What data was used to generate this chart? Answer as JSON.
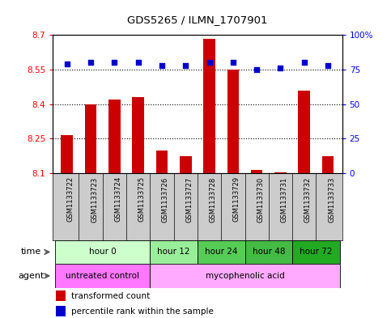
{
  "title": "GDS5265 / ILMN_1707901",
  "samples": [
    "GSM1133722",
    "GSM1133723",
    "GSM1133724",
    "GSM1133725",
    "GSM1133726",
    "GSM1133727",
    "GSM1133728",
    "GSM1133729",
    "GSM1133730",
    "GSM1133731",
    "GSM1133732",
    "GSM1133733"
  ],
  "bar_values": [
    8.265,
    8.4,
    8.42,
    8.43,
    8.2,
    8.175,
    8.685,
    8.55,
    8.115,
    8.105,
    8.46,
    8.175
  ],
  "percentile_values": [
    79,
    80,
    80,
    80,
    78,
    78,
    80,
    80,
    75,
    76,
    80,
    78
  ],
  "ylim_left": [
    8.1,
    8.7
  ],
  "ylim_right": [
    0,
    100
  ],
  "yticks_left": [
    8.1,
    8.25,
    8.4,
    8.55,
    8.7
  ],
  "yticks_right": [
    0,
    25,
    50,
    75,
    100
  ],
  "ytick_labels_left": [
    "8.1",
    "8.25",
    "8.4",
    "8.55",
    "8.7"
  ],
  "ytick_labels_right": [
    "0",
    "25",
    "50",
    "75",
    "100%"
  ],
  "grid_values": [
    8.25,
    8.4,
    8.55
  ],
  "bar_color": "#cc0000",
  "dot_color": "#0000cc",
  "bar_bottom": 8.1,
  "time_groups": [
    {
      "label": "hour 0",
      "start": 0,
      "end": 3,
      "color": "#ccffcc"
    },
    {
      "label": "hour 12",
      "start": 4,
      "end": 5,
      "color": "#99ee99"
    },
    {
      "label": "hour 24",
      "start": 6,
      "end": 7,
      "color": "#55cc55"
    },
    {
      "label": "hour 48",
      "start": 8,
      "end": 9,
      "color": "#44bb44"
    },
    {
      "label": "hour 72",
      "start": 10,
      "end": 11,
      "color": "#22aa22"
    }
  ],
  "agent_groups": [
    {
      "label": "untreated control",
      "start": 0,
      "end": 3,
      "color": "#ff77ff"
    },
    {
      "label": "mycophenolic acid",
      "start": 4,
      "end": 11,
      "color": "#ffaaff"
    }
  ],
  "legend_bar_label": "transformed count",
  "legend_dot_label": "percentile rank within the sample",
  "time_label": "time",
  "agent_label": "agent",
  "sample_bg_color": "#cccccc",
  "plot_bg_color": "#ffffff"
}
